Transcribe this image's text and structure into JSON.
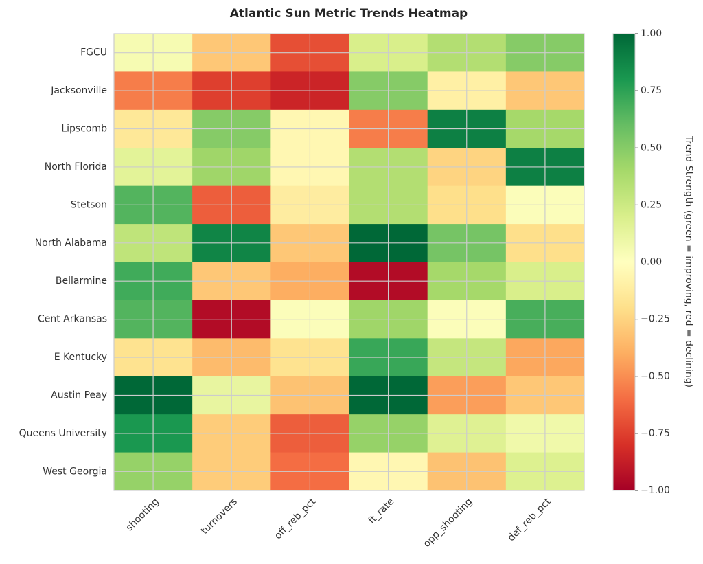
{
  "chart_data": {
    "type": "heatmap",
    "title": "Atlantic Sun Metric Trends Heatmap",
    "xlabel": "",
    "ylabel": "",
    "colormap": "RdYlGn",
    "grid": true,
    "x_categories": [
      "shooting",
      "turnovers",
      "off_reb_pct",
      "ft_rate",
      "opp_shooting",
      "def_reb_pct"
    ],
    "y_categories": [
      "FGCU",
      "Jacksonville",
      "Lipscomb",
      "North Florida",
      "Stetson",
      "North Alabama",
      "Bellarmine",
      "Cent Arkansas",
      "E Kentucky",
      "Austin Peay",
      "Queens University",
      "West Georgia"
    ],
    "values": [
      [
        0.05,
        -0.3,
        -0.7,
        0.2,
        0.35,
        0.5
      ],
      [
        -0.55,
        -0.75,
        -0.85,
        0.5,
        -0.1,
        -0.3
      ],
      [
        -0.15,
        0.5,
        -0.05,
        -0.55,
        0.9,
        0.4
      ],
      [
        0.15,
        0.42,
        -0.05,
        0.35,
        -0.25,
        0.9
      ],
      [
        0.65,
        -0.65,
        -0.12,
        0.35,
        -0.2,
        0.02
      ],
      [
        0.3,
        0.88,
        -0.3,
        1.0,
        0.55,
        -0.2
      ],
      [
        0.7,
        -0.3,
        -0.4,
        -0.95,
        0.4,
        0.2
      ],
      [
        0.65,
        -0.95,
        0.02,
        0.42,
        0.02,
        0.68
      ],
      [
        -0.18,
        -0.35,
        -0.18,
        0.72,
        0.28,
        -0.42
      ],
      [
        1.0,
        0.12,
        -0.32,
        1.0,
        -0.45,
        -0.3
      ],
      [
        0.8,
        -0.28,
        -0.65,
        0.45,
        0.17,
        0.08
      ],
      [
        0.45,
        -0.28,
        -0.6,
        -0.05,
        -0.32,
        0.18
      ]
    ],
    "vmin": -1.0,
    "vmax": 1.0,
    "colorbar": {
      "label": "Trend Strength (green = improving, red = declining)",
      "ticks": [
        1.0,
        0.75,
        0.5,
        0.25,
        0.0,
        -0.25,
        -0.5,
        -0.75,
        -1.0
      ],
      "tick_labels": [
        "1.00",
        "0.75",
        "0.50",
        "0.25",
        "0.00",
        "−0.25",
        "−0.50",
        "−0.75",
        "−1.00"
      ],
      "placement": "right"
    }
  }
}
